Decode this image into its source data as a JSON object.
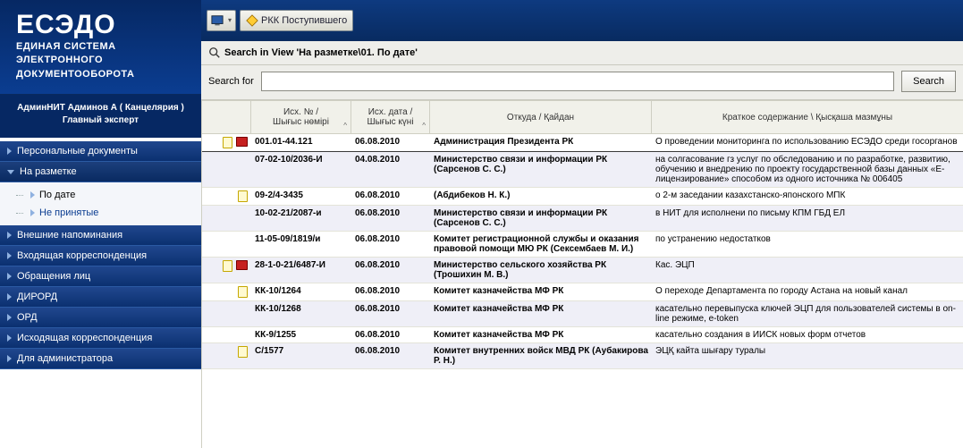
{
  "brand": {
    "title": "ЕСЭДО",
    "subtitle1": "ЕДИНАЯ СИСТЕМА",
    "subtitle2": "ЭЛЕКТРОННОГО",
    "subtitle3": "ДОКУМЕНТООБОРОТА"
  },
  "user": {
    "line1": "АдминНИТ Админов А ( Канцелярия )",
    "line2": "Главный эксперт"
  },
  "nav": [
    {
      "label": "Персональные документы",
      "expanded": false
    },
    {
      "label": "На разметке",
      "expanded": true,
      "children": [
        {
          "label": "По дате",
          "active": true
        },
        {
          "label": "Не принятые",
          "active": false
        }
      ]
    },
    {
      "label": "Внешние напоминания",
      "expanded": false
    },
    {
      "label": "Входящая корреспонденция",
      "expanded": false
    },
    {
      "label": "Обращения лиц",
      "expanded": false
    },
    {
      "label": "ДИРОРД",
      "expanded": false
    },
    {
      "label": "ОРД",
      "expanded": false
    },
    {
      "label": "Исходящая корреспонденция",
      "expanded": false
    },
    {
      "label": "Для администратора",
      "expanded": false
    }
  ],
  "toolbar": {
    "btn_rkk": "РКК Поступившего"
  },
  "search": {
    "heading": "Search in View 'На разметке\\01. По дате'",
    "label": "Search for",
    "button": "Search",
    "value": ""
  },
  "columns": {
    "num": "Исх. № /\nШығыс нөмірі",
    "date": "Исх. дата /\nШығыс күні",
    "from": "Откуда / Қайдан",
    "summary": "Краткое содержание \\ Қысқаша мазмұны"
  },
  "rows": [
    {
      "alt": false,
      "sep": true,
      "icons": [
        "doc",
        "bk"
      ],
      "num": "001.01-44.121",
      "date": "06.08.2010",
      "from": "Администрация Президента РК",
      "sum": "О проведении мониторинга по использованию ЕСЭДО среди госорганов"
    },
    {
      "alt": true,
      "icons": [],
      "num": "07-02-10/2036-И",
      "date": "04.08.2010",
      "from": "Министерство связи и информации РК (Сарсенов С. С.)",
      "sum": "на солгасование гз услуг по обследованию и по разработке, развитию, обучению и внедрению по проекту государственной базы данных «Е-лицензирование» способом из одного источника № 006405"
    },
    {
      "alt": false,
      "icons": [
        "doc"
      ],
      "num": "09-2/4-3435",
      "date": "06.08.2010",
      "from": " (Абдибеков Н. К.)",
      "sum": "о 2-м заседании казахстанско-японского МПК"
    },
    {
      "alt": true,
      "icons": [],
      "num": "10-02-21/2087-и",
      "date": "06.08.2010",
      "from": "Министерство связи и информации РК (Сарсенов С. С.)",
      "sum": "в НИТ для исполнени по письму КПМ ГБД ЕЛ"
    },
    {
      "alt": false,
      "icons": [],
      "num": "11-05-09/1819/и",
      "date": "06.08.2010",
      "from": "Комитет регистрационной службы и оказания правовой помощи МЮ РК (Сексембаев М. И.)",
      "sum": " по устранению недостатков"
    },
    {
      "alt": true,
      "icons": [
        "doc",
        "bk"
      ],
      "num": "28-1-0-21/6487-И",
      "date": "06.08.2010",
      "from": "Министерство сельского хозяйства РК (Трошихин М. В.)",
      "sum": "Кас. ЭЦП"
    },
    {
      "alt": false,
      "icons": [
        "doc"
      ],
      "num": "КК-10/1264",
      "date": "06.08.2010",
      "from": "Комитет казначейства МФ РК",
      "sum": "О переходе Департамента по городу Астана на новый канал"
    },
    {
      "alt": true,
      "icons": [],
      "num": "КК-10/1268",
      "date": "06.08.2010",
      "from": "Комитет казначейства МФ РК",
      "sum": "касательно перевыпуска ключей ЭЦП для пользователей системы в on-line режиме, e-token"
    },
    {
      "alt": false,
      "icons": [],
      "num": "КК-9/1255",
      "date": "06.08.2010",
      "from": "Комитет казначейства МФ РК",
      "sum": "касательно создания в ИИСК новых форм отчетов"
    },
    {
      "alt": true,
      "icons": [
        "doc"
      ],
      "num": "С/1577",
      "date": "06.08.2010",
      "from": "Комитет внутренних войск МВД РК (Аубакирова Р. Н.)",
      "sum": "ЭЦҚ кайта шығару туралы"
    }
  ]
}
